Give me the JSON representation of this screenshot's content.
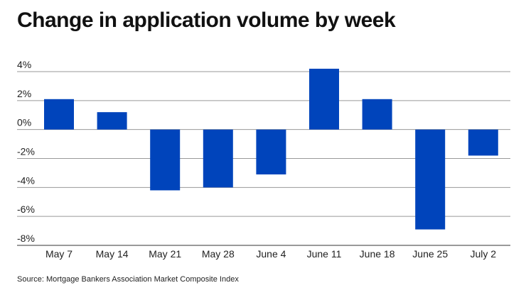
{
  "chart_data": {
    "type": "bar",
    "title": "Change in application volume by week",
    "source": "Source: Mortgage Bankers Association Market Composite Index",
    "categories": [
      "May 7",
      "May 14",
      "May 21",
      "May 28",
      "June 4",
      "June 11",
      "June 18",
      "June 25",
      "July 2"
    ],
    "values": [
      2.1,
      1.2,
      -4.2,
      -4.0,
      -3.1,
      4.2,
      2.1,
      -6.9,
      -1.8
    ],
    "unit": "%",
    "ylim": [
      -8,
      4
    ],
    "yticks": [
      4,
      2,
      0,
      -2,
      -4,
      -6,
      -8
    ],
    "ytick_labels": [
      "4%",
      "2%",
      "0%",
      "-2%",
      "-4%",
      "-6%",
      "-8%"
    ],
    "grid": true,
    "bar_color": "#0044bb",
    "grid_color": "#999999"
  }
}
